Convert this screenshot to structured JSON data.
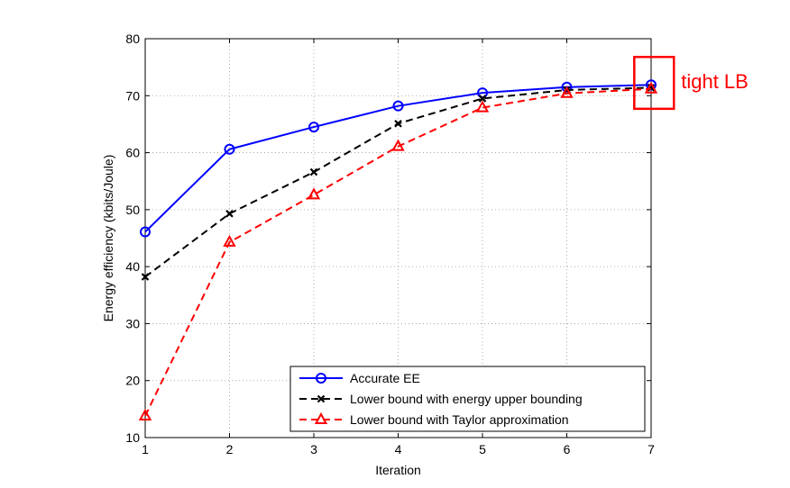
{
  "chart_data": {
    "type": "line",
    "title": "",
    "xlabel": "Iteration",
    "ylabel": "Energy efficiency (kbits/Joule)",
    "xlim": [
      1,
      7
    ],
    "ylim": [
      10,
      80
    ],
    "x_ticks": [
      1,
      2,
      3,
      4,
      5,
      6,
      7
    ],
    "y_ticks": [
      10,
      20,
      30,
      40,
      50,
      60,
      70,
      80
    ],
    "grid": true,
    "legend_position": "bottom-right",
    "x": [
      1,
      2,
      3,
      4,
      5,
      6,
      7
    ],
    "series": [
      {
        "name": "Accurate EE",
        "values": [
          46.1,
          60.6,
          64.5,
          68.2,
          70.5,
          71.5,
          71.9
        ],
        "color": "#0000ff",
        "line_style": "solid",
        "marker": "circle"
      },
      {
        "name": "Lower bound with energy upper bounding",
        "values": [
          38.2,
          49.3,
          56.6,
          65.1,
          69.5,
          71.0,
          71.4
        ],
        "color": "#000000",
        "line_style": "dashed",
        "marker": "x"
      },
      {
        "name": "Lower bound with Taylor approximation",
        "values": [
          13.8,
          44.3,
          52.6,
          61.1,
          67.9,
          70.4,
          71.2
        ],
        "color": "#ff0000",
        "line_style": "dashed",
        "marker": "triangle"
      }
    ],
    "annotation": {
      "text": "tight LB",
      "color": "#ff0000",
      "box_x_range": [
        6.8,
        7.27
      ],
      "box_y_range": [
        67.7,
        76.8
      ]
    }
  }
}
